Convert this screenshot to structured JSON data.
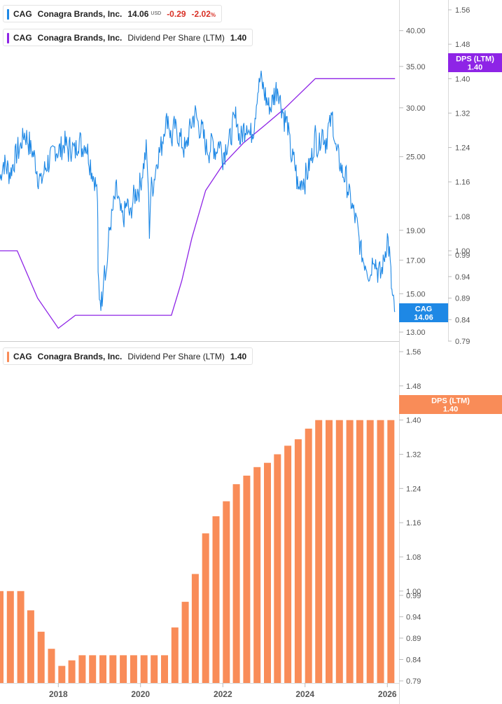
{
  "legends": {
    "price": {
      "ticker": "CAG",
      "company": "Conagra Brands, Inc.",
      "price": "14.06",
      "currency": "USD",
      "change": "-0.29",
      "change_pct": "-2.02",
      "pct_sign": "%"
    },
    "dps_top": {
      "ticker": "CAG",
      "company": "Conagra Brands, Inc.",
      "metric": "Dividend Per Share (LTM)",
      "value": "1.40"
    },
    "dps_bottom": {
      "ticker": "CAG",
      "company": "Conagra Brands, Inc.",
      "metric": "Dividend Per Share (LTM)",
      "value": "1.40"
    }
  },
  "badges": {
    "cag": {
      "line1": "CAG",
      "line2": "14.06"
    },
    "dps_top": {
      "line1": "DPS (LTM)",
      "line2": "1.40"
    },
    "dps_bottom": {
      "line1": "DPS (LTM)",
      "line2": "1.40"
    }
  },
  "colors": {
    "price": "#1e88e5",
    "dps_line": "#8e24e6",
    "dps_bar": "#f98c58",
    "negative": "#d93025",
    "axis": "#555555",
    "divider": "#cccccc"
  },
  "chart_data": [
    {
      "type": "line",
      "series": [
        {
          "name": "CAG",
          "points": [
            [
              "2016-08-01",
              23.0
            ],
            [
              "2016-09-01",
              24.5
            ],
            [
              "2016-10-01",
              24.0
            ],
            [
              "2016-11-01",
              23.5
            ],
            [
              "2016-12-01",
              24.5
            ],
            [
              "2017-01-01",
              25.5
            ],
            [
              "2017-02-01",
              26.0
            ],
            [
              "2017-03-01",
              27.3
            ],
            [
              "2017-04-01",
              26.8
            ],
            [
              "2017-05-01",
              25.8
            ],
            [
              "2017-06-01",
              25.0
            ],
            [
              "2017-07-01",
              23.5
            ],
            [
              "2017-08-01",
              22.7
            ],
            [
              "2017-09-01",
              23.8
            ],
            [
              "2017-10-01",
              24.5
            ],
            [
              "2017-11-01",
              25.0
            ],
            [
              "2017-12-01",
              25.8
            ],
            [
              "2018-01-01",
              25.5
            ],
            [
              "2018-02-01",
              25.7
            ],
            [
              "2018-03-01",
              26.3
            ],
            [
              "2018-04-01",
              25.6
            ],
            [
              "2018-05-01",
              26.0
            ],
            [
              "2018-06-01",
              25.5
            ],
            [
              "2018-07-01",
              26.8
            ],
            [
              "2018-08-01",
              25.8
            ],
            [
              "2018-09-01",
              26.3
            ],
            [
              "2018-10-01",
              25.0
            ],
            [
              "2018-11-01",
              23.5
            ],
            [
              "2018-12-01",
              22.5
            ],
            [
              "2018-12-15",
              21.5
            ],
            [
              "2018-12-20",
              16.0
            ],
            [
              "2019-01-01",
              15.0
            ],
            [
              "2019-01-20",
              14.5
            ],
            [
              "2019-02-01",
              15.5
            ],
            [
              "2019-02-15",
              17.0
            ],
            [
              "2019-03-01",
              16.0
            ],
            [
              "2019-04-01",
              19.0
            ],
            [
              "2019-05-01",
              20.5
            ],
            [
              "2019-06-01",
              22.0
            ],
            [
              "2019-07-01",
              20.5
            ],
            [
              "2019-08-01",
              19.8
            ],
            [
              "2019-09-01",
              21.0
            ],
            [
              "2019-10-01",
              20.0
            ],
            [
              "2019-11-01",
              21.5
            ],
            [
              "2019-12-01",
              22.0
            ],
            [
              "2020-01-01",
              22.5
            ],
            [
              "2020-02-01",
              24.5
            ],
            [
              "2020-02-20",
              25.5
            ],
            [
              "2020-03-05",
              23.5
            ],
            [
              "2020-03-20",
              19.0
            ],
            [
              "2020-04-01",
              22.0
            ],
            [
              "2020-05-01",
              23.0
            ],
            [
              "2020-06-01",
              25.0
            ],
            [
              "2020-07-01",
              25.8
            ],
            [
              "2020-08-01",
              28.0
            ],
            [
              "2020-09-01",
              29.0
            ],
            [
              "2020-10-01",
              26.5
            ],
            [
              "2020-11-01",
              28.0
            ],
            [
              "2020-12-01",
              27.0
            ],
            [
              "2021-01-01",
              26.5
            ],
            [
              "2021-02-01",
              25.5
            ],
            [
              "2021-03-01",
              27.0
            ],
            [
              "2021-04-01",
              28.5
            ],
            [
              "2021-05-01",
              29.5
            ],
            [
              "2021-06-01",
              28.0
            ],
            [
              "2021-07-01",
              27.5
            ],
            [
              "2021-08-01",
              26.0
            ],
            [
              "2021-09-01",
              25.5
            ],
            [
              "2021-10-01",
              26.5
            ],
            [
              "2021-11-01",
              25.5
            ],
            [
              "2021-12-01",
              26.5
            ],
            [
              "2022-01-01",
              25.2
            ],
            [
              "2022-02-01",
              26.0
            ],
            [
              "2022-03-01",
              26.5
            ],
            [
              "2022-04-01",
              28.0
            ],
            [
              "2022-05-01",
              29.0
            ],
            [
              "2022-06-01",
              26.5
            ],
            [
              "2022-07-01",
              27.5
            ],
            [
              "2022-08-01",
              28.5
            ],
            [
              "2022-09-01",
              27.0
            ],
            [
              "2022-10-01",
              28.0
            ],
            [
              "2022-11-01",
              31.5
            ],
            [
              "2022-12-01",
              33.5
            ],
            [
              "2023-01-01",
              32.0
            ],
            [
              "2023-02-01",
              30.5
            ],
            [
              "2023-03-01",
              30.0
            ],
            [
              "2023-04-01",
              31.5
            ],
            [
              "2023-05-01",
              32.5
            ],
            [
              "2023-06-01",
              30.5
            ],
            [
              "2023-07-01",
              29.0
            ],
            [
              "2023-08-01",
              28.0
            ],
            [
              "2023-09-01",
              25.0
            ],
            [
              "2023-10-01",
              24.5
            ],
            [
              "2023-11-01",
              22.0
            ],
            [
              "2023-12-01",
              23.0
            ],
            [
              "2024-01-01",
              23.0
            ],
            [
              "2024-02-01",
              24.0
            ],
            [
              "2024-03-01",
              25.0
            ],
            [
              "2024-04-01",
              27.0
            ],
            [
              "2024-05-01",
              26.0
            ],
            [
              "2024-06-01",
              27.5
            ],
            [
              "2024-07-01",
              26.5
            ],
            [
              "2024-08-01",
              28.0
            ],
            [
              "2024-09-01",
              29.0
            ],
            [
              "2024-10-01",
              25.5
            ],
            [
              "2024-11-01",
              24.5
            ],
            [
              "2024-12-01",
              23.5
            ],
            [
              "2025-01-01",
              23.0
            ],
            [
              "2025-02-01",
              21.5
            ],
            [
              "2025-03-01",
              20.5
            ],
            [
              "2025-04-01",
              19.5
            ],
            [
              "2025-05-01",
              18.0
            ],
            [
              "2025-06-01",
              17.0
            ],
            [
              "2025-07-01",
              16.8
            ],
            [
              "2025-08-01",
              16.0
            ],
            [
              "2025-09-01",
              17.5
            ],
            [
              "2025-10-01",
              16.5
            ],
            [
              "2025-11-01",
              16.0
            ],
            [
              "2025-12-01",
              17.0
            ],
            [
              "2026-01-01",
              18.5
            ],
            [
              "2026-01-20",
              17.5
            ],
            [
              "2026-02-01",
              16.0
            ],
            [
              "2026-02-10",
              15.0
            ],
            [
              "2026-02-20",
              14.6
            ],
            [
              "2026-03-01",
              14.3
            ],
            [
              "2026-03-10",
              14.06
            ]
          ]
        },
        {
          "name": "Dividend Per Share (LTM)",
          "points": [
            [
              "2016-08-01",
              1.0
            ],
            [
              "2017-01-01",
              1.0
            ],
            [
              "2017-07-01",
              0.89
            ],
            [
              "2018-01-01",
              0.82
            ],
            [
              "2018-06-01",
              0.85
            ],
            [
              "2020-10-01",
              0.85
            ],
            [
              "2021-01-01",
              0.93
            ],
            [
              "2021-04-01",
              1.03
            ],
            [
              "2021-08-01",
              1.14
            ],
            [
              "2022-01-01",
              1.2
            ],
            [
              "2022-07-01",
              1.25
            ],
            [
              "2023-01-01",
              1.29
            ],
            [
              "2023-07-01",
              1.33
            ],
            [
              "2024-04-01",
              1.4
            ],
            [
              "2026-03-10",
              1.4
            ]
          ]
        }
      ],
      "y_axes": [
        {
          "scale": "log",
          "ticks": [
            "40.00",
            "35.00",
            "30.00",
            "25.00",
            "19.00",
            "17.00",
            "15.00",
            "13.00"
          ]
        },
        {
          "ticks": [
            "1.56",
            "1.48",
            "1.40",
            "1.32",
            "1.24",
            "1.16",
            "1.08",
            "1.00",
            "0.99",
            "0.94",
            "0.89",
            "0.84",
            "0.79"
          ]
        }
      ]
    },
    {
      "type": "bar",
      "series": [
        {
          "name": "Dividend Per Share (LTM)",
          "points": [
            [
              "2016-08-01",
              1.0
            ],
            [
              "2016-11-01",
              1.0
            ],
            [
              "2017-02-01",
              1.0
            ],
            [
              "2017-05-01",
              0.955
            ],
            [
              "2017-08-01",
              0.905
            ],
            [
              "2017-11-01",
              0.865
            ],
            [
              "2018-02-01",
              0.825
            ],
            [
              "2018-05-01",
              0.838
            ],
            [
              "2018-08-01",
              0.85
            ],
            [
              "2018-11-01",
              0.85
            ],
            [
              "2019-02-01",
              0.85
            ],
            [
              "2019-05-01",
              0.85
            ],
            [
              "2019-08-01",
              0.85
            ],
            [
              "2019-11-01",
              0.85
            ],
            [
              "2020-02-01",
              0.85
            ],
            [
              "2020-05-01",
              0.85
            ],
            [
              "2020-08-01",
              0.85
            ],
            [
              "2020-11-01",
              0.915
            ],
            [
              "2021-02-01",
              0.975
            ],
            [
              "2021-05-01",
              1.04
            ],
            [
              "2021-08-01",
              1.135
            ],
            [
              "2021-11-01",
              1.175
            ],
            [
              "2022-02-01",
              1.21
            ],
            [
              "2022-05-01",
              1.25
            ],
            [
              "2022-08-01",
              1.27
            ],
            [
              "2022-11-01",
              1.29
            ],
            [
              "2023-02-01",
              1.3
            ],
            [
              "2023-05-01",
              1.32
            ],
            [
              "2023-08-01",
              1.34
            ],
            [
              "2023-11-01",
              1.355
            ],
            [
              "2024-02-01",
              1.38
            ],
            [
              "2024-05-01",
              1.4
            ],
            [
              "2024-08-01",
              1.4
            ],
            [
              "2024-11-01",
              1.4
            ],
            [
              "2025-02-01",
              1.4
            ],
            [
              "2025-05-01",
              1.4
            ],
            [
              "2025-08-01",
              1.4
            ],
            [
              "2025-11-01",
              1.4
            ],
            [
              "2026-02-01",
              1.4
            ]
          ]
        }
      ],
      "y_axis": {
        "ticks": [
          "1.56",
          "1.48",
          "1.40",
          "1.32",
          "1.24",
          "1.16",
          "1.08",
          "1.00",
          "0.99",
          "0.94",
          "0.89",
          "0.84",
          "0.79"
        ]
      },
      "x_ticks": [
        "2018",
        "2020",
        "2022",
        "2024",
        "2026"
      ]
    }
  ]
}
